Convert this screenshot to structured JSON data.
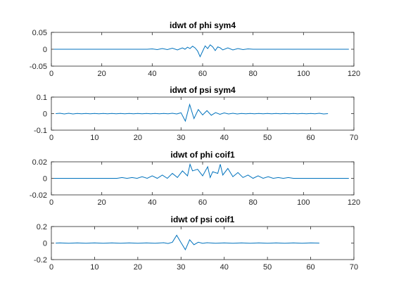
{
  "chart_data": [
    {
      "type": "line",
      "title": "idwt of phi sym4",
      "xlabel": "",
      "ylabel": "",
      "xlim": [
        0,
        120
      ],
      "ylim": [
        -0.05,
        0.05
      ],
      "xticks": [
        0,
        20,
        40,
        60,
        80,
        100,
        120
      ],
      "xtick_labels": [
        "0",
        "20",
        "40",
        "60",
        "80",
        "100",
        "120"
      ],
      "yticks": [
        0.05,
        0,
        -0.05
      ],
      "ytick_labels": [
        "0.05",
        "0",
        "-0.05"
      ],
      "grid": false,
      "color": "#0072BD",
      "series": [
        {
          "x": [
            1,
            38,
            40,
            42,
            44,
            46,
            48,
            50,
            52,
            53,
            54,
            55,
            56,
            57,
            58,
            59,
            60,
            61,
            62,
            63,
            64,
            65,
            66,
            67,
            68,
            70,
            72,
            74,
            76,
            78,
            80,
            82,
            118
          ],
          "y": [
            0,
            0,
            0.001,
            -0.001,
            0.002,
            -0.001,
            0.003,
            -0.002,
            0.004,
            0.0,
            0.006,
            0.002,
            0.009,
            0.004,
            -0.005,
            -0.022,
            -0.006,
            0.01,
            0.002,
            0.013,
            0.007,
            -0.004,
            0.007,
            0.004,
            -0.002,
            0.004,
            -0.002,
            0.002,
            -0.001,
            0.001,
            0,
            0,
            0
          ]
        }
      ]
    },
    {
      "type": "line",
      "title": "idwt of psi sym4",
      "xlabel": "",
      "ylabel": "",
      "xlim": [
        0,
        70
      ],
      "ylim": [
        -0.1,
        0.1
      ],
      "xticks": [
        0,
        10,
        20,
        30,
        40,
        50,
        60,
        70
      ],
      "xtick_labels": [
        "0",
        "10",
        "20",
        "30",
        "40",
        "50",
        "60",
        "70"
      ],
      "yticks": [
        0.1,
        0,
        -0.1
      ],
      "ytick_labels": [
        "0.1",
        "0",
        "-0.1"
      ],
      "grid": false,
      "color": "#0072BD",
      "series": [
        {
          "x": [
            1,
            2,
            3,
            4,
            5,
            6,
            7,
            8,
            9,
            10,
            11,
            12,
            13,
            14,
            15,
            16,
            17,
            18,
            19,
            20,
            21,
            22,
            23,
            24,
            25,
            26,
            27,
            28,
            29,
            30,
            31,
            32,
            33,
            34,
            35,
            36,
            37,
            38,
            39,
            40,
            41,
            42,
            43,
            44,
            45,
            46,
            47,
            48,
            49,
            50,
            51,
            52,
            53,
            54,
            55,
            56,
            57,
            58,
            59,
            60,
            61,
            62,
            63,
            64
          ],
          "y": [
            0,
            0.002,
            -0.002,
            0.002,
            -0.002,
            0.001,
            -0.001,
            0.001,
            -0.001,
            0.001,
            -0.001,
            0.001,
            -0.001,
            0.001,
            -0.001,
            0.001,
            -0.001,
            0.001,
            -0.001,
            0.001,
            -0.001,
            0.001,
            -0.001,
            0.001,
            -0.001,
            0.001,
            -0.001,
            0.002,
            -0.002,
            0.005,
            -0.045,
            0.055,
            -0.03,
            0.025,
            -0.008,
            0.018,
            -0.01,
            0.006,
            -0.004,
            0.004,
            -0.002,
            0.002,
            -0.002,
            0.001,
            -0.001,
            0.001,
            -0.001,
            0.001,
            -0.001,
            0.001,
            -0.001,
            0.001,
            -0.001,
            0.001,
            -0.001,
            0.001,
            -0.001,
            0.001,
            -0.001,
            0.001,
            -0.001,
            0.002,
            -0.002,
            0
          ]
        }
      ]
    },
    {
      "type": "line",
      "title": "idwt of phi coif1",
      "xlabel": "",
      "ylabel": "",
      "xlim": [
        0,
        120
      ],
      "ylim": [
        -0.02,
        0.02
      ],
      "xticks": [
        0,
        20,
        40,
        60,
        80,
        100,
        120
      ],
      "xtick_labels": [
        "0",
        "20",
        "40",
        "60",
        "80",
        "100",
        "120"
      ],
      "yticks": [
        0.02,
        0,
        -0.02
      ],
      "ytick_labels": [
        "0.02",
        "0",
        "-0.02"
      ],
      "grid": false,
      "color": "#0072BD",
      "series": [
        {
          "x": [
            1,
            26,
            28,
            30,
            32,
            34,
            36,
            38,
            40,
            42,
            44,
            46,
            48,
            50,
            52,
            54,
            55,
            56,
            58,
            60,
            62,
            63,
            64,
            66,
            67,
            68,
            70,
            72,
            74,
            76,
            78,
            80,
            82,
            84,
            86,
            88,
            90,
            92,
            94,
            96,
            98,
            100,
            118
          ],
          "y": [
            0,
            0,
            0.001,
            0,
            0.001,
            0,
            0.002,
            0,
            0.003,
            0,
            0.004,
            0,
            0.006,
            0.001,
            0.009,
            0.003,
            0.017,
            0.009,
            0.011,
            0.003,
            0.014,
            0.001,
            0.008,
            0.006,
            0.017,
            0.004,
            0.012,
            0.002,
            0.007,
            0.001,
            0.004,
            0,
            0.003,
            0,
            0.002,
            0,
            0.001,
            0,
            0.001,
            0,
            0,
            0,
            0
          ]
        }
      ]
    },
    {
      "type": "line",
      "title": "idwt of psi coif1",
      "xlabel": "",
      "ylabel": "",
      "xlim": [
        0,
        70
      ],
      "ylim": [
        -0.2,
        0.2
      ],
      "xticks": [
        0,
        10,
        20,
        30,
        40,
        50,
        60,
        70
      ],
      "xtick_labels": [
        "0",
        "10",
        "20",
        "30",
        "40",
        "50",
        "60",
        "70"
      ],
      "yticks": [
        0.2,
        0,
        -0.2
      ],
      "ytick_labels": [
        "0.2",
        "0",
        "-0.2"
      ],
      "grid": false,
      "color": "#0072BD",
      "series": [
        {
          "x": [
            1,
            2,
            4,
            6,
            8,
            10,
            12,
            14,
            16,
            18,
            20,
            22,
            24,
            26,
            27,
            28,
            29,
            30,
            31,
            32,
            33,
            34,
            35,
            36,
            38,
            40,
            42,
            44,
            46,
            48,
            50,
            52,
            54,
            56,
            58,
            60,
            62
          ],
          "y": [
            0,
            0.002,
            -0.002,
            0.002,
            -0.002,
            0.002,
            -0.002,
            0.002,
            -0.002,
            0.002,
            -0.002,
            0.002,
            -0.002,
            0.004,
            -0.005,
            0.01,
            0.095,
            0.005,
            -0.08,
            0.04,
            -0.02,
            0.01,
            -0.003,
            0.004,
            -0.002,
            0.002,
            -0.002,
            0.002,
            -0.002,
            0.002,
            -0.002,
            0.002,
            -0.002,
            0.002,
            -0.002,
            0.002,
            0
          ]
        }
      ]
    }
  ]
}
